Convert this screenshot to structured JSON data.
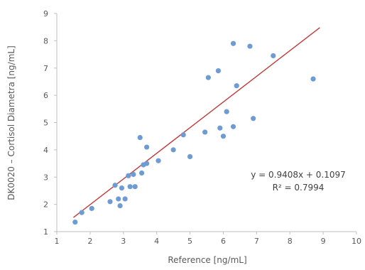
{
  "chart_data": {
    "type": "scatter",
    "title": "",
    "xlabel": "Reference [ng/mL]",
    "ylabel": "DK0020 – Cortisol Diametra [ng/mL]",
    "xlim": [
      1,
      10
    ],
    "ylim": [
      1,
      9
    ],
    "x_ticks": [
      1,
      2,
      3,
      4,
      5,
      6,
      7,
      8,
      9,
      10
    ],
    "y_ticks": [
      1,
      2,
      3,
      4,
      5,
      6,
      7,
      8,
      9
    ],
    "grid": false,
    "series": [
      {
        "color": "#6f9bd4",
        "points": [
          {
            "x": 1.55,
            "y": 1.35
          },
          {
            "x": 1.75,
            "y": 1.7
          },
          {
            "x": 2.05,
            "y": 1.85
          },
          {
            "x": 2.6,
            "y": 2.1
          },
          {
            "x": 2.75,
            "y": 2.7
          },
          {
            "x": 2.85,
            "y": 2.2
          },
          {
            "x": 2.9,
            "y": 1.95
          },
          {
            "x": 2.95,
            "y": 2.6
          },
          {
            "x": 3.05,
            "y": 2.2
          },
          {
            "x": 3.15,
            "y": 3.05
          },
          {
            "x": 3.2,
            "y": 2.65
          },
          {
            "x": 3.3,
            "y": 3.1
          },
          {
            "x": 3.35,
            "y": 2.65
          },
          {
            "x": 3.5,
            "y": 4.45
          },
          {
            "x": 3.55,
            "y": 3.15
          },
          {
            "x": 3.6,
            "y": 3.45
          },
          {
            "x": 3.7,
            "y": 3.5
          },
          {
            "x": 3.7,
            "y": 4.1
          },
          {
            "x": 4.05,
            "y": 3.6
          },
          {
            "x": 4.5,
            "y": 4.0
          },
          {
            "x": 4.8,
            "y": 4.55
          },
          {
            "x": 5.0,
            "y": 3.75
          },
          {
            "x": 5.45,
            "y": 4.65
          },
          {
            "x": 5.55,
            "y": 6.65
          },
          {
            "x": 5.85,
            "y": 6.9
          },
          {
            "x": 5.9,
            "y": 4.8
          },
          {
            "x": 6.0,
            "y": 4.5
          },
          {
            "x": 6.1,
            "y": 5.4
          },
          {
            "x": 6.3,
            "y": 4.85
          },
          {
            "x": 6.3,
            "y": 7.9
          },
          {
            "x": 6.4,
            "y": 6.35
          },
          {
            "x": 6.8,
            "y": 7.8
          },
          {
            "x": 6.9,
            "y": 5.15
          },
          {
            "x": 7.5,
            "y": 7.45
          },
          {
            "x": 8.7,
            "y": 6.6
          }
        ]
      }
    ],
    "trendline": {
      "color": "#c43a3a",
      "slope": 0.9408,
      "intercept": 0.1097,
      "x_range": [
        1.5,
        8.9
      ]
    },
    "annotations": {
      "equation": "y = 0.9408x + 0.1097",
      "r_squared": "R² = 0.7994"
    }
  }
}
